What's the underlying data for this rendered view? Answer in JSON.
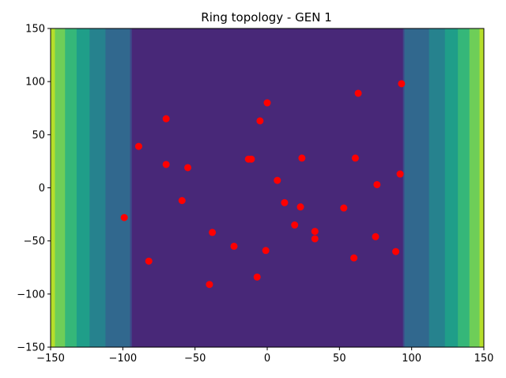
{
  "chart_data": {
    "type": "scatter",
    "title": "Ring topology - GEN 1",
    "xlim": [
      -150,
      150
    ],
    "ylim": [
      -150,
      150
    ],
    "xticks": [
      -150,
      -100,
      -50,
      0,
      50,
      100,
      150
    ],
    "yticks": [
      -150,
      -100,
      -50,
      0,
      50,
      100,
      150
    ],
    "grid": false,
    "background": {
      "type": "filled-contour",
      "colormap": "viridis",
      "level_colors": [
        "#440154",
        "#482878",
        "#3e4989",
        "#31688e",
        "#26828e",
        "#1f9e89",
        "#35b779",
        "#6ece58",
        "#b5de2b",
        "#fde725"
      ],
      "bands_left": [
        {
          "x_from": -150,
          "x_to": -147,
          "level": 8
        },
        {
          "x_from": -147,
          "x_to": -140,
          "level": 7
        },
        {
          "x_from": -140,
          "x_to": -132,
          "level": 6
        },
        {
          "x_from": -132,
          "x_to": -123,
          "level": 5
        },
        {
          "x_from": -123,
          "x_to": -112,
          "level": 4
        },
        {
          "x_from": -112,
          "x_to": -95,
          "level": 3
        },
        {
          "x_from": -95,
          "x_to": -94,
          "level": 2
        }
      ],
      "bands_right": [
        {
          "x_from": 94,
          "x_to": 95,
          "level": 2
        },
        {
          "x_from": 95,
          "x_to": 112,
          "level": 3
        },
        {
          "x_from": 112,
          "x_to": 123,
          "level": 4
        },
        {
          "x_from": 123,
          "x_to": 132,
          "level": 5
        },
        {
          "x_from": 132,
          "x_to": 140,
          "level": 6
        },
        {
          "x_from": 140,
          "x_to": 147,
          "level": 7
        },
        {
          "x_from": 147,
          "x_to": 150,
          "level": 8
        }
      ],
      "base_level": 1
    },
    "marker_color": "#ff0000",
    "points": [
      {
        "x": 93,
        "y": 98
      },
      {
        "x": 63,
        "y": 89
      },
      {
        "x": 0,
        "y": 80
      },
      {
        "x": -70,
        "y": 65
      },
      {
        "x": -5,
        "y": 63
      },
      {
        "x": -89,
        "y": 39
      },
      {
        "x": -13,
        "y": 27
      },
      {
        "x": -11,
        "y": 27
      },
      {
        "x": 24,
        "y": 28
      },
      {
        "x": 61,
        "y": 28
      },
      {
        "x": -70,
        "y": 22
      },
      {
        "x": -55,
        "y": 19
      },
      {
        "x": 92,
        "y": 13
      },
      {
        "x": 7,
        "y": 7
      },
      {
        "x": 76,
        "y": 3
      },
      {
        "x": -59,
        "y": -12
      },
      {
        "x": 12,
        "y": -14
      },
      {
        "x": 23,
        "y": -18
      },
      {
        "x": 53,
        "y": -19
      },
      {
        "x": -99,
        "y": -28
      },
      {
        "x": 19,
        "y": -35
      },
      {
        "x": 33,
        "y": -41
      },
      {
        "x": -38,
        "y": -42
      },
      {
        "x": 75,
        "y": -46
      },
      {
        "x": 33,
        "y": -48
      },
      {
        "x": -23,
        "y": -55
      },
      {
        "x": -1,
        "y": -59
      },
      {
        "x": 89,
        "y": -60
      },
      {
        "x": 60,
        "y": -66
      },
      {
        "x": -82,
        "y": -69
      },
      {
        "x": -7,
        "y": -84
      },
      {
        "x": -40,
        "y": -91
      }
    ]
  }
}
